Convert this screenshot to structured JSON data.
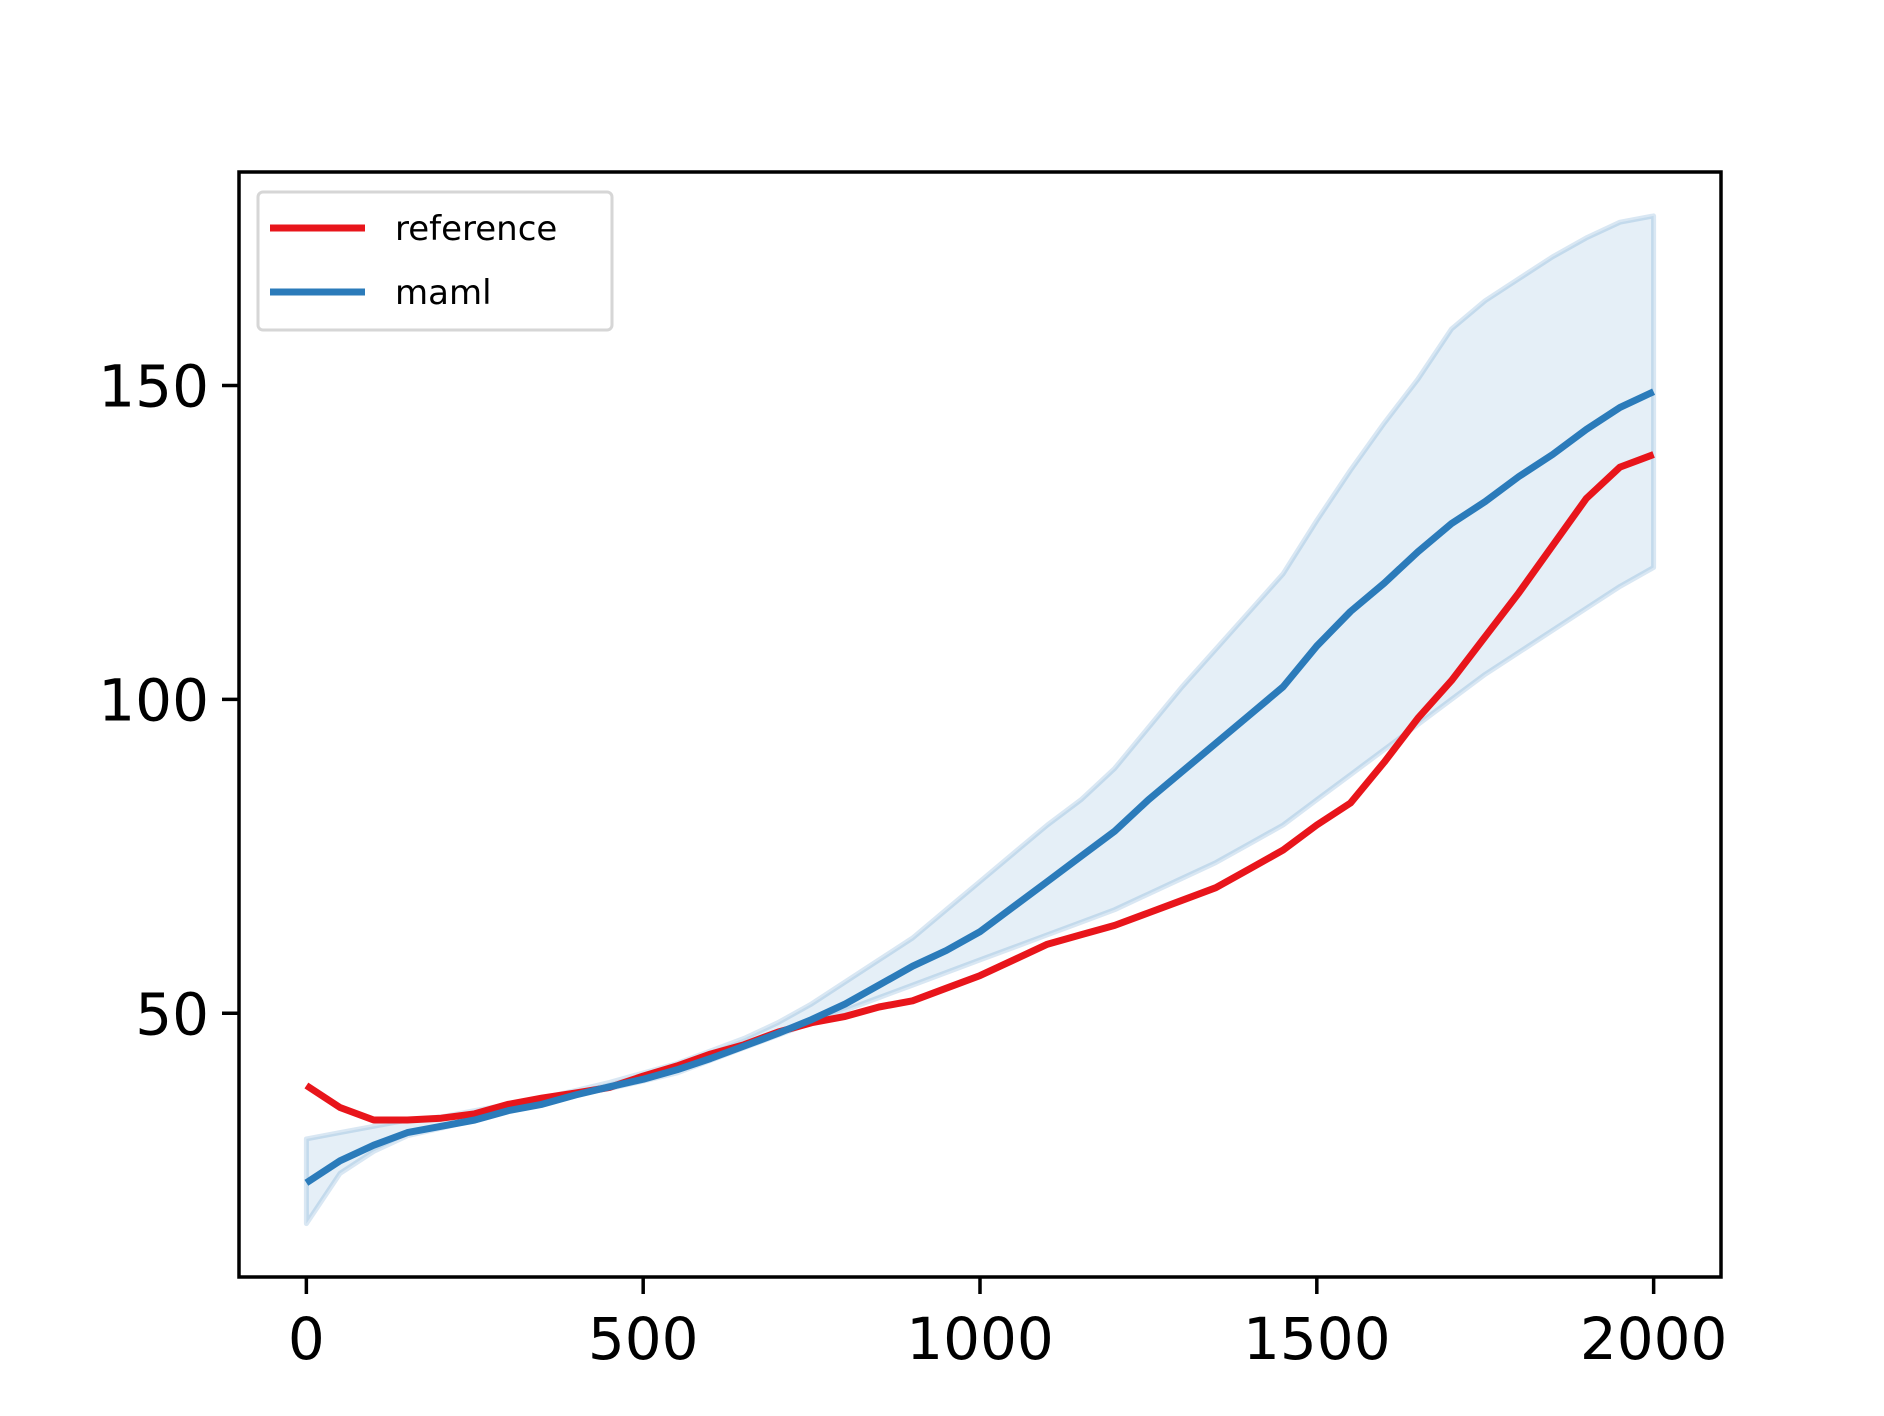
{
  "chart_data": {
    "type": "line",
    "title": "",
    "xlabel": "",
    "ylabel": "",
    "xlim": [
      -100,
      2100
    ],
    "ylim": [
      8,
      184
    ],
    "xticks": [
      0,
      500,
      1000,
      1500,
      2000
    ],
    "xtick_labels": [
      "0",
      "500",
      "1000",
      "1500",
      "2000"
    ],
    "yticks": [
      50,
      100,
      150
    ],
    "ytick_labels": [
      "50",
      "100",
      "150"
    ],
    "grid": false,
    "legend_position": "top-left",
    "series": [
      {
        "name": "reference",
        "color": "#e8151b",
        "x": [
          0,
          50,
          100,
          150,
          200,
          250,
          300,
          350,
          400,
          450,
          500,
          550,
          600,
          650,
          700,
          750,
          800,
          850,
          900,
          950,
          1000,
          1050,
          1100,
          1150,
          1200,
          1250,
          1300,
          1350,
          1400,
          1450,
          1500,
          1550,
          1600,
          1650,
          1700,
          1750,
          1800,
          1850,
          1900,
          1950,
          2000
        ],
        "values": [
          38.5,
          35.0,
          33.0,
          33.0,
          33.3,
          34.0,
          35.5,
          36.5,
          37.3,
          38.2,
          40.0,
          41.6,
          43.5,
          45.0,
          47.0,
          48.5,
          49.5,
          51.0,
          52.0,
          54.0,
          56.0,
          58.5,
          61.0,
          62.5,
          64.0,
          66.0,
          68.0,
          70.0,
          73.0,
          76.0,
          80.0,
          83.5,
          90.0,
          97.0,
          103.0,
          110.0,
          117.0,
          124.5,
          132.0,
          137.0,
          139.0
        ]
      },
      {
        "name": "maml",
        "color": "#2b7bba",
        "x": [
          0,
          50,
          100,
          150,
          200,
          250,
          300,
          350,
          400,
          450,
          500,
          550,
          600,
          650,
          700,
          750,
          800,
          850,
          900,
          950,
          1000,
          1050,
          1100,
          1150,
          1200,
          1250,
          1300,
          1350,
          1400,
          1450,
          1500,
          1550,
          1600,
          1650,
          1700,
          1750,
          1800,
          1850,
          1900,
          1950,
          2000
        ],
        "values": [
          23.0,
          26.5,
          29.0,
          31.0,
          32.0,
          33.0,
          34.5,
          35.5,
          37.0,
          38.3,
          39.5,
          41.0,
          42.8,
          44.8,
          46.8,
          49.0,
          51.5,
          54.5,
          57.5,
          60.0,
          63.0,
          67.0,
          71.0,
          75.0,
          79.0,
          84.0,
          88.5,
          93.0,
          97.5,
          102.0,
          108.5,
          114.0,
          118.5,
          123.5,
          128.0,
          131.5,
          135.5,
          139.0,
          143.0,
          146.5,
          149.0
        ],
        "band_lower": [
          16.5,
          24.5,
          28.0,
          30.5,
          31.7,
          33.0,
          34.5,
          35.5,
          37.0,
          38.0,
          39.2,
          40.5,
          42.5,
          44.5,
          46.5,
          48.5,
          50.5,
          52.5,
          54.5,
          56.5,
          58.5,
          60.5,
          62.5,
          64.5,
          66.5,
          69.0,
          71.5,
          74.0,
          77.0,
          80.0,
          84.0,
          88.0,
          92.0,
          96.0,
          100.0,
          104.0,
          107.5,
          111.0,
          114.5,
          118.0,
          121.0
        ],
        "band_upper": [
          30.0,
          31.0,
          32.0,
          33.0,
          33.5,
          34.5,
          35.5,
          36.5,
          37.7,
          39.0,
          40.5,
          42.0,
          44.0,
          46.0,
          48.5,
          51.5,
          55.0,
          58.5,
          62.0,
          66.5,
          71.0,
          75.5,
          80.0,
          84.0,
          89.0,
          95.5,
          102.0,
          108.0,
          114.0,
          120.0,
          128.5,
          136.5,
          144.0,
          151.0,
          159.0,
          163.5,
          167.0,
          170.5,
          173.5,
          176.0,
          177.0
        ]
      }
    ]
  }
}
